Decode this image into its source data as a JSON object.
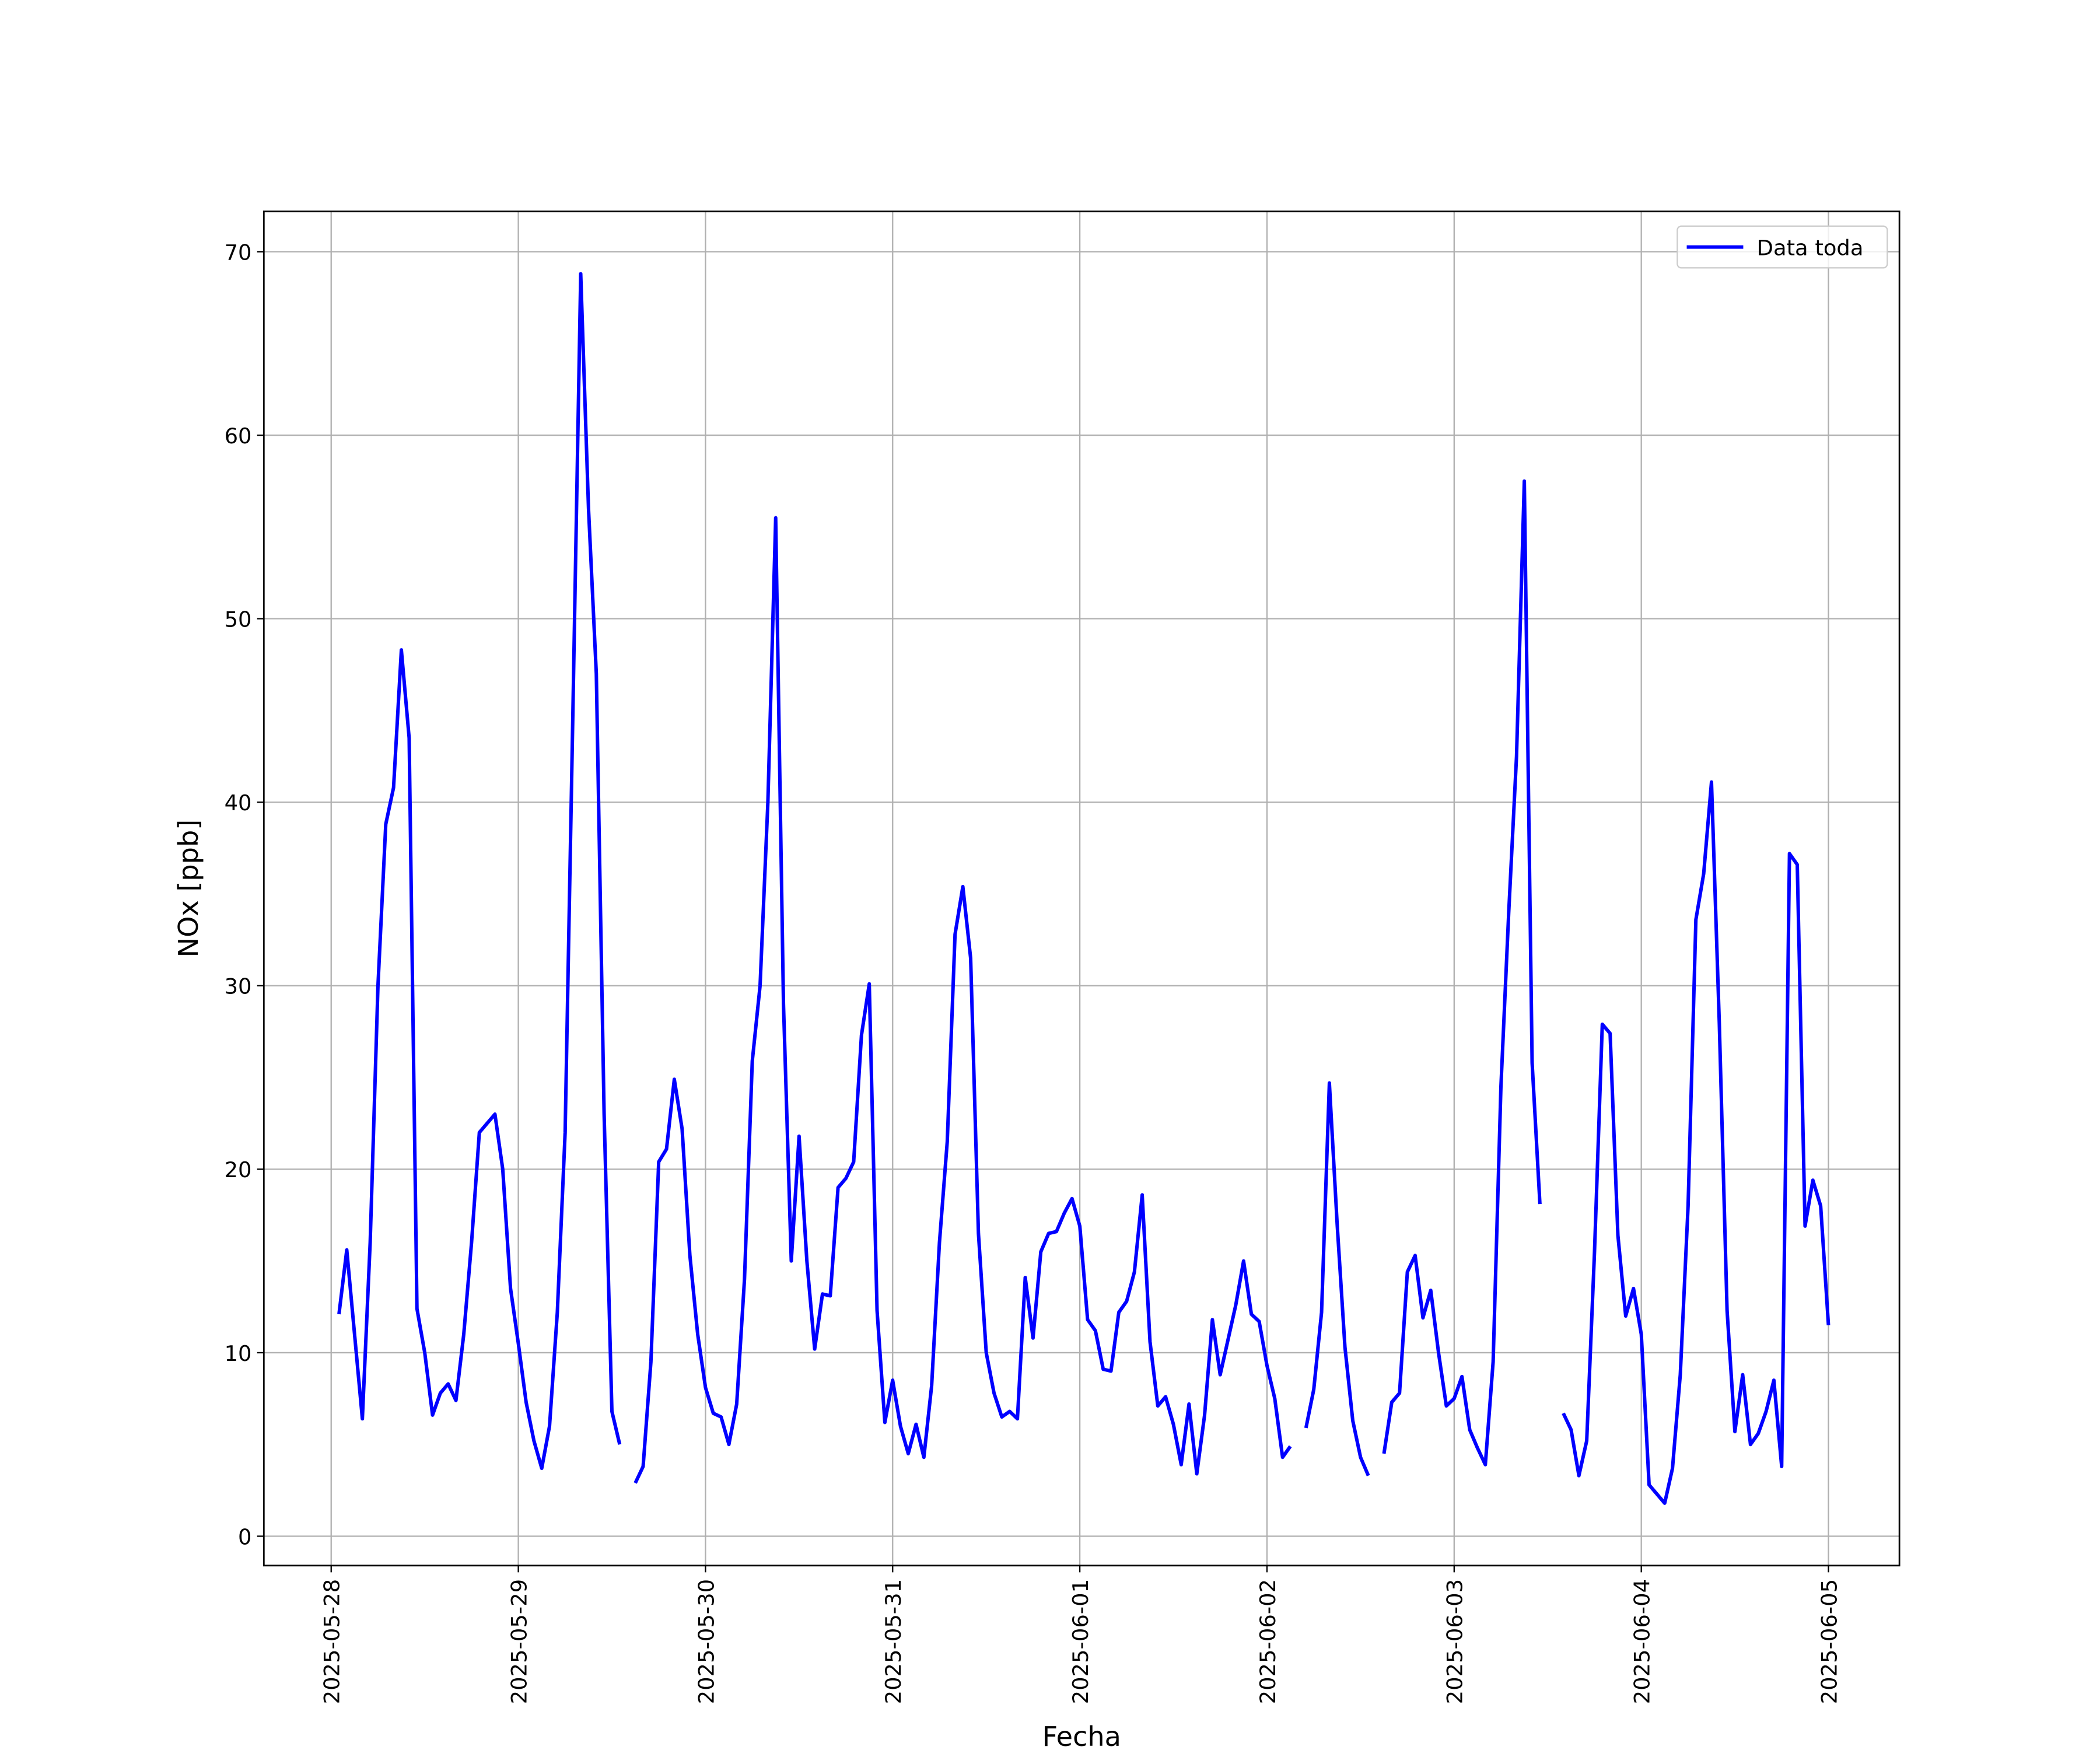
{
  "chart_data": {
    "type": "line",
    "xlabel": "Fecha",
    "ylabel": "NOx [ppb]",
    "x": [
      "2025-05-28T01:00",
      "2025-05-28T02:00",
      "2025-05-28T03:00",
      "2025-05-28T04:00",
      "2025-05-28T05:00",
      "2025-05-28T06:00",
      "2025-05-28T07:00",
      "2025-05-28T08:00",
      "2025-05-28T09:00",
      "2025-05-28T10:00",
      "2025-05-28T11:00",
      "2025-05-28T12:00",
      "2025-05-28T13:00",
      "2025-05-28T14:00",
      "2025-05-28T15:00",
      "2025-05-28T16:00",
      "2025-05-28T17:00",
      "2025-05-28T18:00",
      "2025-05-28T19:00",
      "2025-05-28T20:00",
      "2025-05-28T21:00",
      "2025-05-28T22:00",
      "2025-05-28T23:00",
      "2025-05-29T00:00",
      "2025-05-29T01:00",
      "2025-05-29T02:00",
      "2025-05-29T03:00",
      "2025-05-29T04:00",
      "2025-05-29T05:00",
      "2025-05-29T06:00",
      "2025-05-29T07:00",
      "2025-05-29T08:00",
      "2025-05-29T09:00",
      "2025-05-29T10:00",
      "2025-05-29T11:00",
      "2025-05-29T12:00",
      "2025-05-29T13:00",
      "2025-05-29T14:00",
      "2025-05-29T15:00",
      "2025-05-29T16:00",
      "2025-05-29T17:00",
      "2025-05-29T18:00",
      "2025-05-29T19:00",
      "2025-05-29T20:00",
      "2025-05-29T21:00",
      "2025-05-29T22:00",
      "2025-05-29T23:00",
      "2025-05-30T00:00",
      "2025-05-30T01:00",
      "2025-05-30T02:00",
      "2025-05-30T03:00",
      "2025-05-30T04:00",
      "2025-05-30T05:00",
      "2025-05-30T06:00",
      "2025-05-30T07:00",
      "2025-05-30T08:00",
      "2025-05-30T09:00",
      "2025-05-30T10:00",
      "2025-05-30T11:00",
      "2025-05-30T12:00",
      "2025-05-30T13:00",
      "2025-05-30T14:00",
      "2025-05-30T15:00",
      "2025-05-30T16:00",
      "2025-05-30T17:00",
      "2025-05-30T18:00",
      "2025-05-30T19:00",
      "2025-05-30T20:00",
      "2025-05-30T21:00",
      "2025-05-30T22:00",
      "2025-05-30T23:00",
      "2025-05-31T00:00",
      "2025-05-31T01:00",
      "2025-05-31T02:00",
      "2025-05-31T03:00",
      "2025-05-31T04:00",
      "2025-05-31T05:00",
      "2025-05-31T06:00",
      "2025-05-31T07:00",
      "2025-05-31T08:00",
      "2025-05-31T09:00",
      "2025-05-31T10:00",
      "2025-05-31T11:00",
      "2025-05-31T12:00",
      "2025-05-31T13:00",
      "2025-05-31T14:00",
      "2025-05-31T15:00",
      "2025-05-31T16:00",
      "2025-05-31T17:00",
      "2025-05-31T18:00",
      "2025-05-31T19:00",
      "2025-05-31T20:00",
      "2025-05-31T21:00",
      "2025-05-31T22:00",
      "2025-05-31T23:00",
      "2025-06-01T00:00",
      "2025-06-01T01:00",
      "2025-06-01T02:00",
      "2025-06-01T03:00",
      "2025-06-01T04:00",
      "2025-06-01T05:00",
      "2025-06-01T06:00",
      "2025-06-01T07:00",
      "2025-06-01T08:00",
      "2025-06-01T09:00",
      "2025-06-01T10:00",
      "2025-06-01T11:00",
      "2025-06-01T12:00",
      "2025-06-01T13:00",
      "2025-06-01T14:00",
      "2025-06-01T15:00",
      "2025-06-01T16:00",
      "2025-06-01T17:00",
      "2025-06-01T18:00",
      "2025-06-01T19:00",
      "2025-06-01T20:00",
      "2025-06-01T21:00",
      "2025-06-01T22:00",
      "2025-06-01T23:00",
      "2025-06-02T00:00",
      "2025-06-02T01:00",
      "2025-06-02T02:00",
      "2025-06-02T03:00",
      "2025-06-02T04:00",
      "2025-06-02T05:00",
      "2025-06-02T06:00",
      "2025-06-02T07:00",
      "2025-06-02T08:00",
      "2025-06-02T09:00",
      "2025-06-02T10:00",
      "2025-06-02T11:00",
      "2025-06-02T12:00",
      "2025-06-02T13:00",
      "2025-06-02T14:00",
      "2025-06-02T15:00",
      "2025-06-02T16:00",
      "2025-06-02T17:00",
      "2025-06-02T18:00",
      "2025-06-02T19:00",
      "2025-06-02T20:00",
      "2025-06-02T21:00",
      "2025-06-02T22:00",
      "2025-06-02T23:00",
      "2025-06-03T00:00",
      "2025-06-03T01:00",
      "2025-06-03T02:00",
      "2025-06-03T03:00",
      "2025-06-03T04:00",
      "2025-06-03T05:00",
      "2025-06-03T06:00",
      "2025-06-03T07:00",
      "2025-06-03T08:00",
      "2025-06-03T09:00",
      "2025-06-03T10:00",
      "2025-06-03T11:00",
      "2025-06-03T12:00",
      "2025-06-03T13:00",
      "2025-06-03T14:00",
      "2025-06-03T15:00",
      "2025-06-03T16:00",
      "2025-06-03T17:00",
      "2025-06-03T18:00",
      "2025-06-03T19:00",
      "2025-06-03T20:00",
      "2025-06-03T21:00",
      "2025-06-03T22:00",
      "2025-06-03T23:00",
      "2025-06-04T00:00",
      "2025-06-04T01:00",
      "2025-06-04T02:00",
      "2025-06-04T03:00",
      "2025-06-04T04:00",
      "2025-06-04T05:00",
      "2025-06-04T06:00",
      "2025-06-04T07:00",
      "2025-06-04T08:00",
      "2025-06-04T09:00",
      "2025-06-04T10:00",
      "2025-06-04T11:00",
      "2025-06-04T12:00",
      "2025-06-04T13:00",
      "2025-06-04T14:00",
      "2025-06-04T15:00",
      "2025-06-04T16:00",
      "2025-06-04T17:00",
      "2025-06-04T18:00",
      "2025-06-04T19:00",
      "2025-06-04T20:00",
      "2025-06-04T21:00",
      "2025-06-04T22:00",
      "2025-06-04T23:00",
      "2025-06-05T00:00"
    ],
    "series": [
      {
        "name": "Data toda",
        "color": "#0000ff",
        "values": [
          12.1,
          15.6,
          11,
          6.4,
          16,
          30,
          38.8,
          40.8,
          48.3,
          43.5,
          12.4,
          10,
          6.6,
          7.8,
          8.3,
          7.4,
          11,
          16,
          22,
          22.5,
          23,
          20,
          13.5,
          10.5,
          7.3,
          5.2,
          3.7,
          6,
          12.2,
          22,
          45,
          68.8,
          56,
          47,
          23,
          6.8,
          5.0,
          null,
          2.9,
          3.8,
          9.5,
          20.4,
          21.1,
          24.9,
          22.2,
          15.3,
          11,
          8.1,
          6.7,
          6.5,
          5.0,
          7.2,
          14,
          25.9,
          30,
          40,
          55.5,
          29,
          15.0,
          21.8,
          15,
          10.2,
          13.2,
          13.1,
          19,
          19.5,
          20.4,
          27.3,
          30.1,
          12.3,
          6.2,
          8.5,
          6,
          4.5,
          6.1,
          4.3,
          8.2,
          16,
          21.5,
          32.8,
          35.4,
          31.5,
          16.5,
          10,
          7.8,
          6.5,
          6.8,
          6.4,
          14.1,
          10.8,
          15.5,
          16.5,
          16.6,
          17.6,
          18.4,
          16.9,
          11.8,
          11.2,
          9.1,
          9.0,
          12.2,
          12.8,
          14.4,
          18.6,
          10.6,
          7.1,
          7.6,
          6.1,
          3.9,
          7.2,
          3.4,
          6.6,
          11.8,
          8.8,
          10.7,
          12.6,
          15,
          12.1,
          11.7,
          9.3,
          7.5,
          4.3,
          4.9,
          null,
          5.9,
          8,
          12.2,
          24.7,
          17,
          10.3,
          6.3,
          4.3,
          3.3,
          null,
          4.5,
          7.3,
          7.8,
          14.4,
          15.3,
          11.9,
          13.4,
          10,
          7.1,
          7.5,
          8.7,
          5.8,
          4.8,
          3.9,
          9.5,
          24.5,
          34,
          42.5,
          57.5,
          25.8,
          18.1,
          null,
          null,
          6.7,
          5.8,
          3.3,
          5.2,
          15.5,
          27.9,
          27.4,
          16.4,
          12,
          13.5,
          11,
          2.8,
          2.3,
          1.8,
          3.7,
          8.8,
          18,
          33.6,
          36.1,
          41.1,
          28,
          12.3,
          5.7,
          8.8,
          5,
          5.6,
          6.8,
          8.5,
          3.8,
          37.2,
          36.6,
          16.9,
          19.4,
          18,
          11.5
        ]
      }
    ],
    "xlim": [
      "2025-05-27T15:22",
      "2025-06-05T09:06"
    ],
    "xticks": [
      "2025-05-28",
      "2025-05-29",
      "2025-05-30",
      "2025-05-31",
      "2025-06-01",
      "2025-06-02",
      "2025-06-03",
      "2025-06-04",
      "2025-06-05"
    ],
    "ylim": [
      -1.6,
      72.2
    ],
    "yticks": [
      0,
      10,
      20,
      30,
      40,
      50,
      60,
      70
    ],
    "grid": true,
    "legend": "upper right"
  }
}
